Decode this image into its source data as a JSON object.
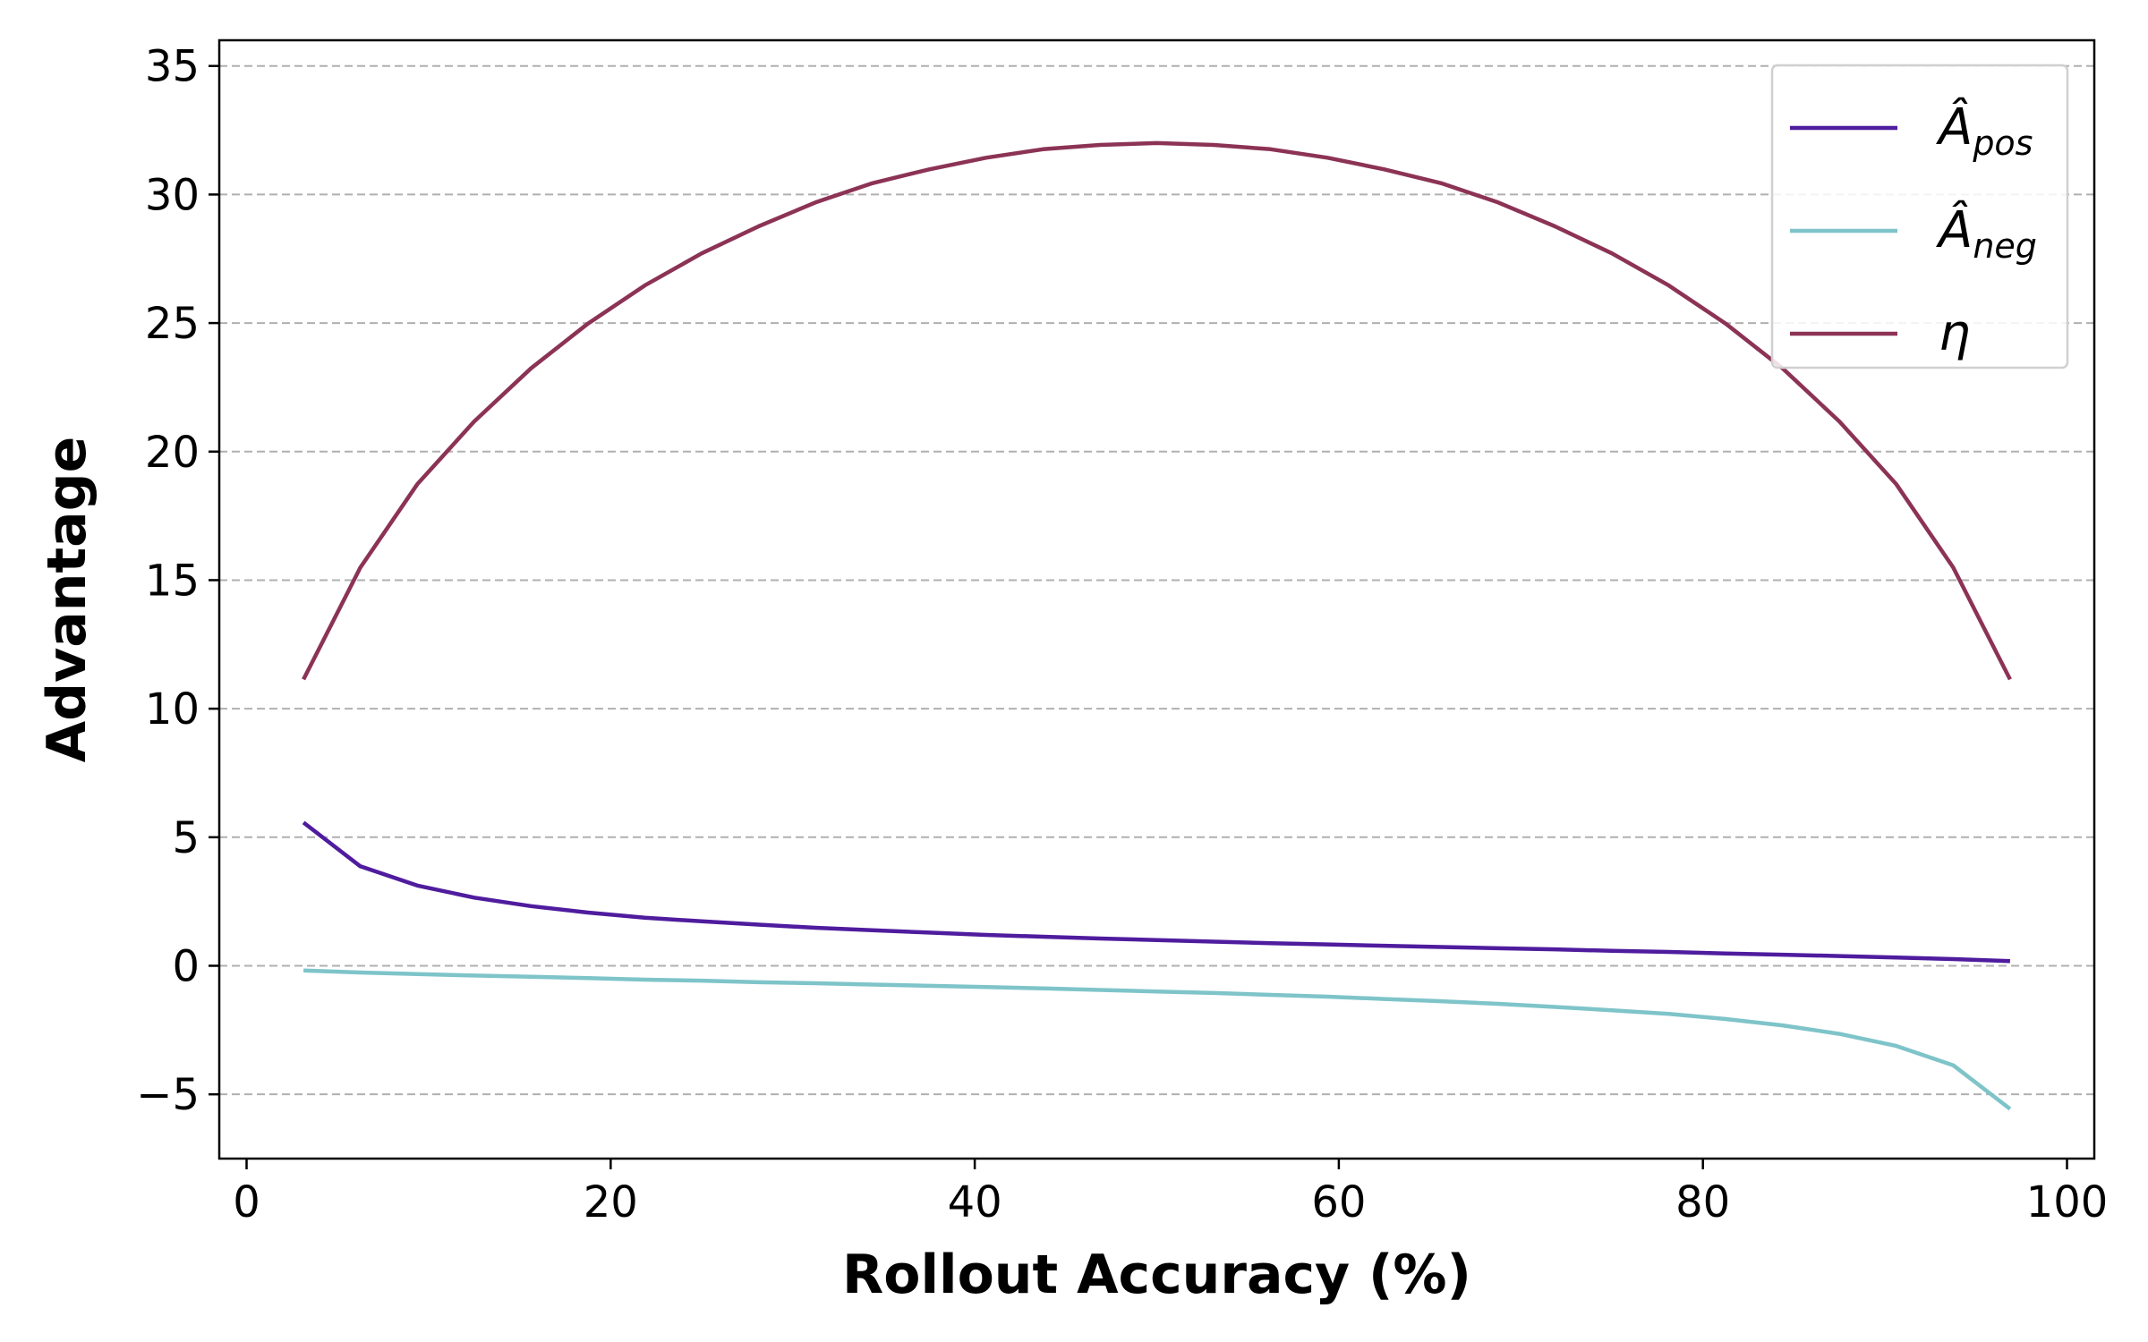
{
  "chart_data": {
    "type": "line",
    "title": "",
    "xlabel": "Rollout Accuracy (%)",
    "ylabel": "Advantage",
    "xlim": [
      -1.5,
      101.5
    ],
    "ylim": [
      -7.5,
      36
    ],
    "xticks": [
      0,
      20,
      40,
      60,
      80,
      100
    ],
    "yticks": [
      -5,
      0,
      5,
      10,
      15,
      20,
      25,
      30,
      35
    ],
    "ytick_labels": [
      "−5",
      "0",
      "5",
      "10",
      "15",
      "20",
      "25",
      "30",
      "35"
    ],
    "grid": "horizontal dashed",
    "legend_position": "top-right",
    "x": [
      3.125,
      6.25,
      9.375,
      12.5,
      15.625,
      18.75,
      21.875,
      25,
      28.125,
      31.25,
      34.375,
      37.5,
      40.625,
      43.75,
      46.875,
      50,
      53.125,
      56.25,
      59.375,
      62.5,
      65.625,
      68.75,
      71.875,
      75,
      78.125,
      81.25,
      84.375,
      87.5,
      90.625,
      93.75,
      96.875
    ],
    "series": [
      {
        "name": "Âpos",
        "legend_main": "Â",
        "legend_sub": "pos",
        "color": "#4f1c9e",
        "values": [
          5.57,
          3.87,
          3.12,
          2.65,
          2.32,
          2.07,
          1.87,
          1.73,
          1.6,
          1.48,
          1.38,
          1.29,
          1.2,
          1.13,
          1.06,
          1.0,
          0.94,
          0.88,
          0.83,
          0.78,
          0.73,
          0.68,
          0.64,
          0.58,
          0.54,
          0.48,
          0.43,
          0.38,
          0.32,
          0.26,
          0.18
        ]
      },
      {
        "name": "Âneg",
        "legend_main": "Â",
        "legend_sub": "neg",
        "color": "#7ec4c9",
        "values": [
          -0.18,
          -0.26,
          -0.32,
          -0.38,
          -0.43,
          -0.48,
          -0.54,
          -0.58,
          -0.64,
          -0.68,
          -0.73,
          -0.78,
          -0.83,
          -0.88,
          -0.94,
          -1.0,
          -1.06,
          -1.13,
          -1.2,
          -1.29,
          -1.38,
          -1.48,
          -1.6,
          -1.73,
          -1.87,
          -2.07,
          -2.32,
          -2.65,
          -3.12,
          -3.87,
          -5.57
        ]
      },
      {
        "name": "η",
        "legend_main": "η",
        "legend_sub": "",
        "color": "#8c3355",
        "values": [
          11.14,
          15.49,
          18.73,
          21.17,
          23.24,
          24.98,
          26.46,
          27.71,
          28.76,
          29.69,
          30.44,
          30.98,
          31.43,
          31.76,
          31.93,
          32.0,
          31.93,
          31.76,
          31.43,
          30.98,
          30.44,
          29.69,
          28.76,
          27.71,
          26.46,
          24.98,
          23.24,
          21.17,
          18.73,
          15.49,
          11.14
        ]
      }
    ]
  }
}
